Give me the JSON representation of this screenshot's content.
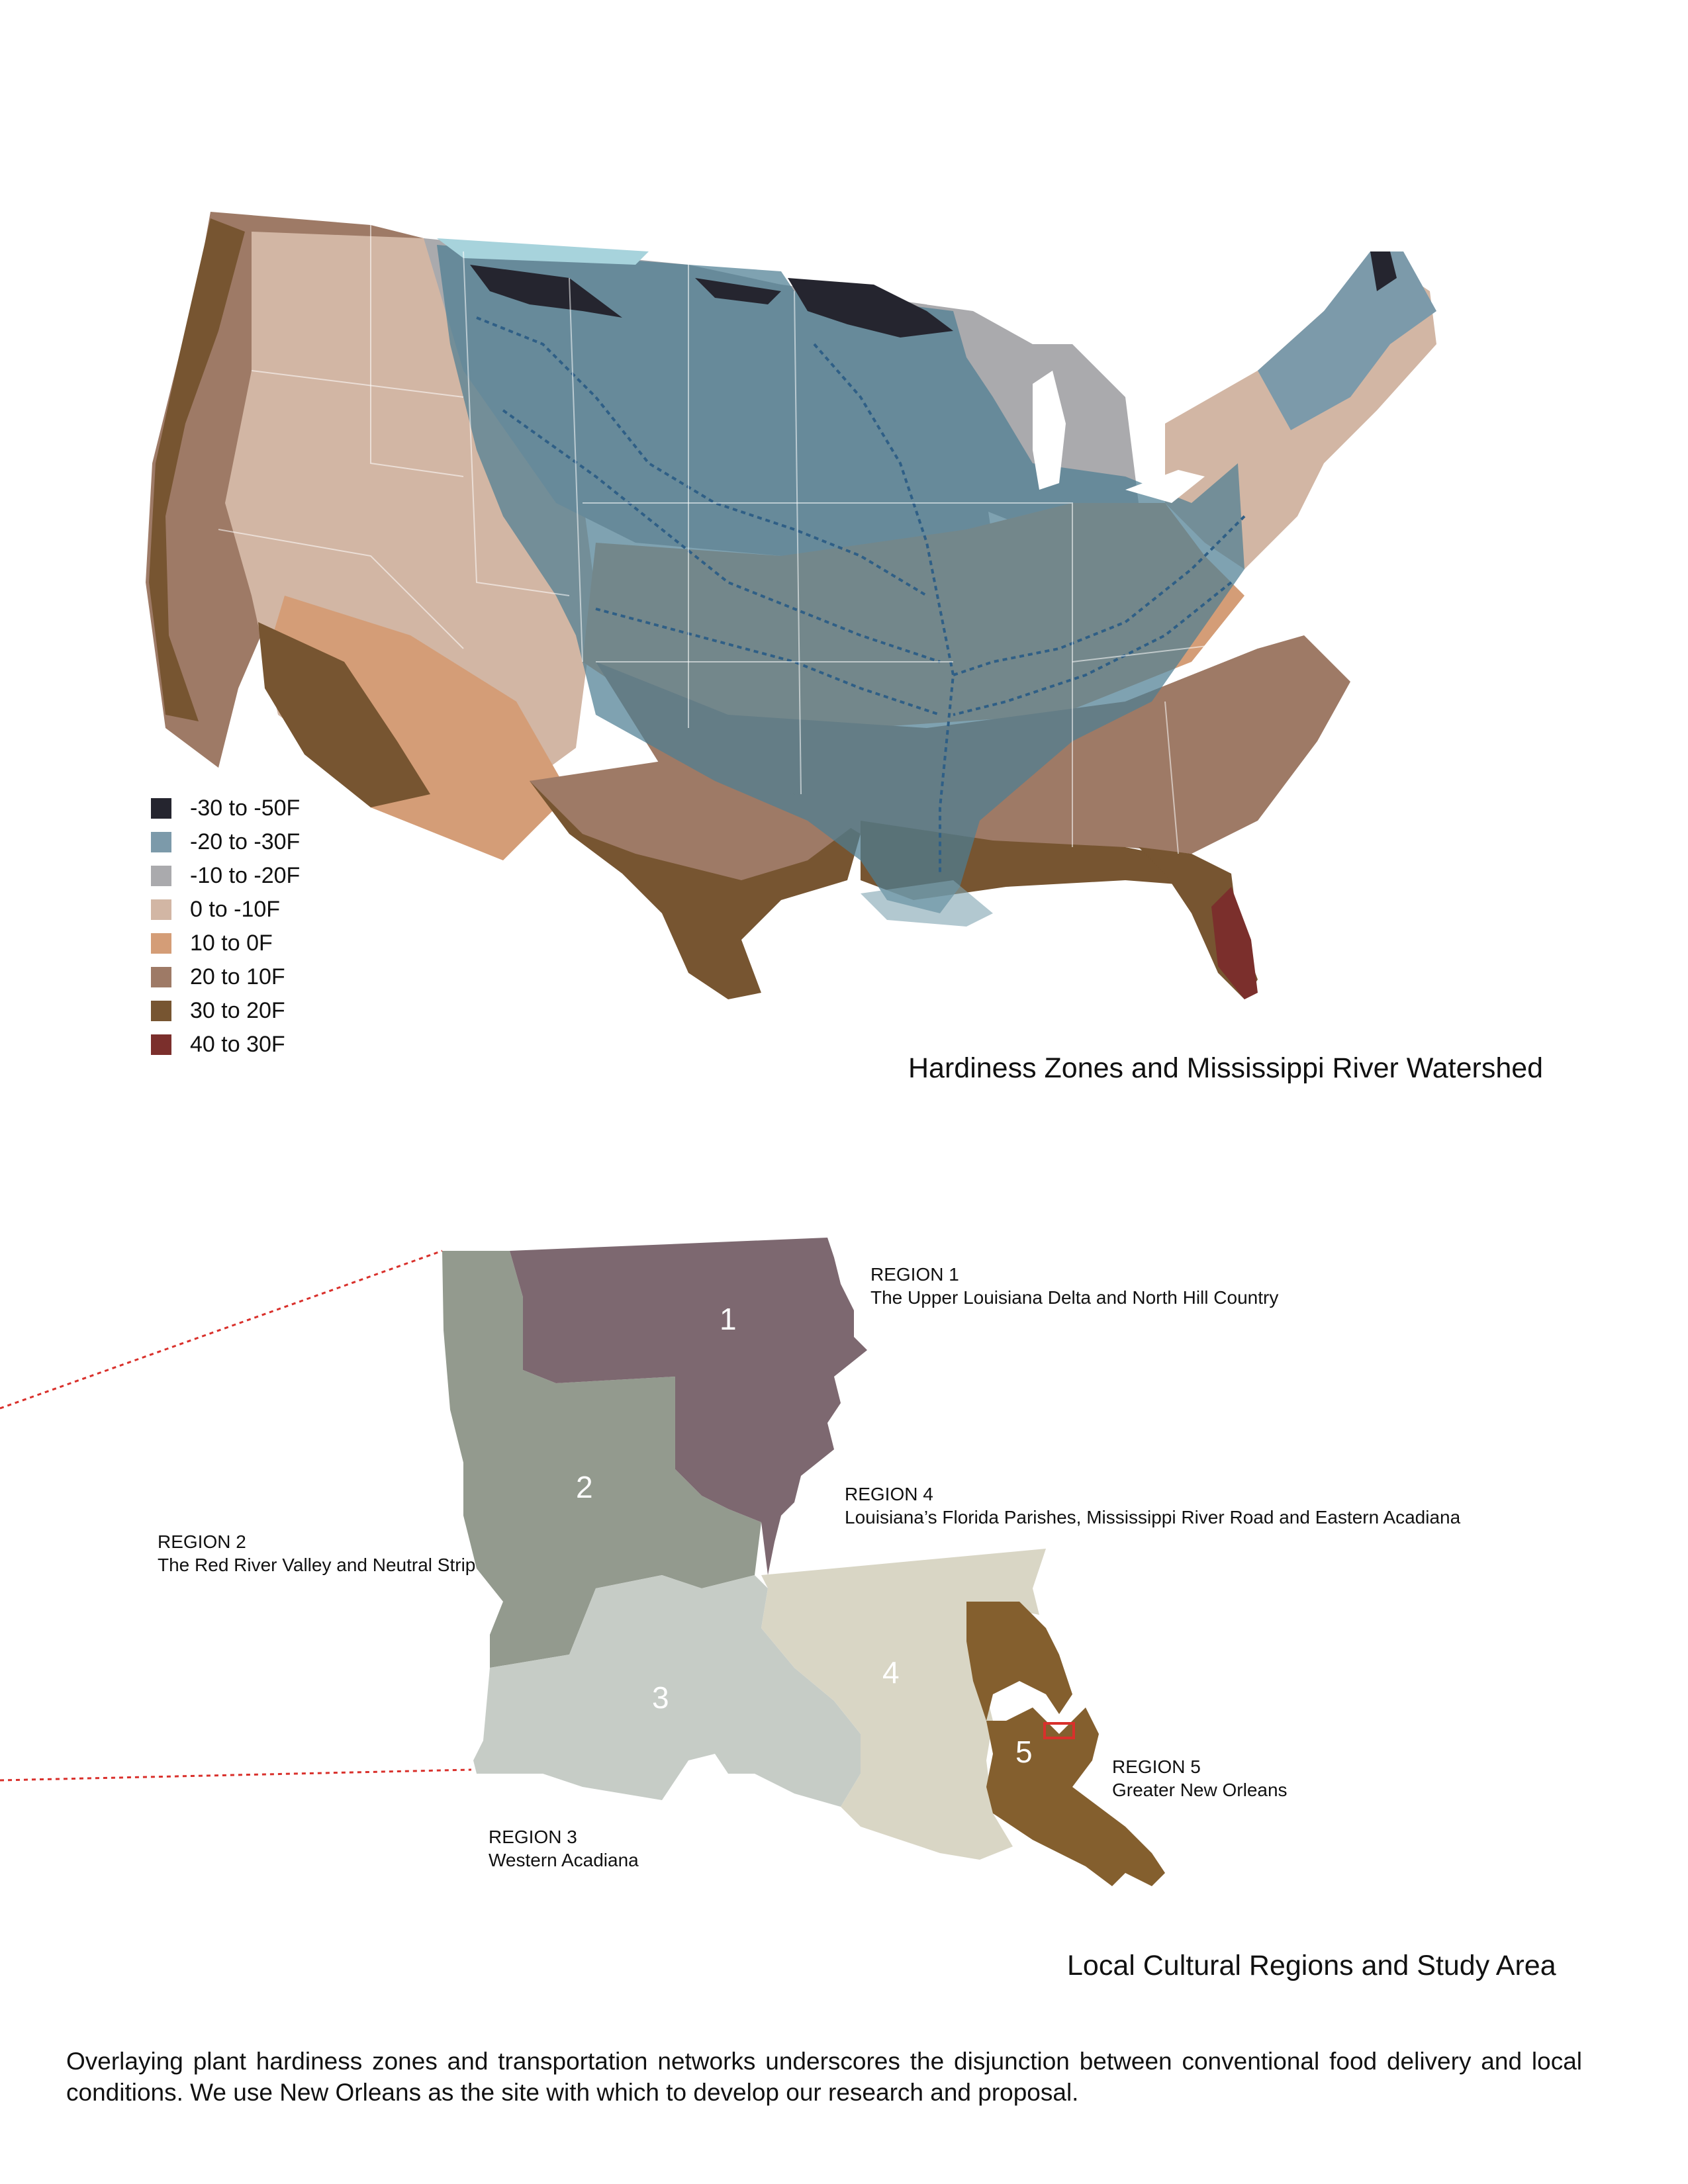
{
  "map1": {
    "title": "Hardiness Zones and Mississippi River Watershed",
    "legend": [
      {
        "label": "-30 to -50F",
        "color": "#25252f"
      },
      {
        "label": "-20 to -30F",
        "color": "#7c9aaa"
      },
      {
        "label": "-10 to -20F",
        "color": "#aaaaad"
      },
      {
        "label": "0 to -10F",
        "color": "#d2b6a4"
      },
      {
        "label": "10 to 0F",
        "color": "#d49d77"
      },
      {
        "label": "20 to 10F",
        "color": "#9e7a66"
      },
      {
        "label": "30 to 20F",
        "color": "#775531"
      },
      {
        "label": "40 to 30F",
        "color": "#7b2f2c"
      }
    ]
  },
  "map2": {
    "title": "Local Cultural Regions and Study Area",
    "regions": [
      {
        "number": "1",
        "title": "REGION 1",
        "subtitle": "The Upper Louisiana Delta and North Hill Country",
        "color": "#7d6870"
      },
      {
        "number": "2",
        "title": "REGION 2",
        "subtitle": "The Red River Valley and Neutral Strip",
        "color": "#939a8e"
      },
      {
        "number": "3",
        "title": "REGION 3",
        "subtitle": "Western Acadiana",
        "color": "#c6ccc6"
      },
      {
        "number": "4",
        "title": "REGION 4",
        "subtitle": "Louisiana’s Florida Parishes, Mississippi River Road and Eastern Acadiana",
        "color": "#d9d6c5"
      },
      {
        "number": "5",
        "title": "REGION 5",
        "subtitle": "Greater New Orleans",
        "color": "#845f2e"
      }
    ]
  },
  "caption": "Overlaying plant hardiness zones and transportation networks underscores the disjunction between conventional food delivery and local conditions. We use New Orleans as the site with which to develop our research and proposal."
}
